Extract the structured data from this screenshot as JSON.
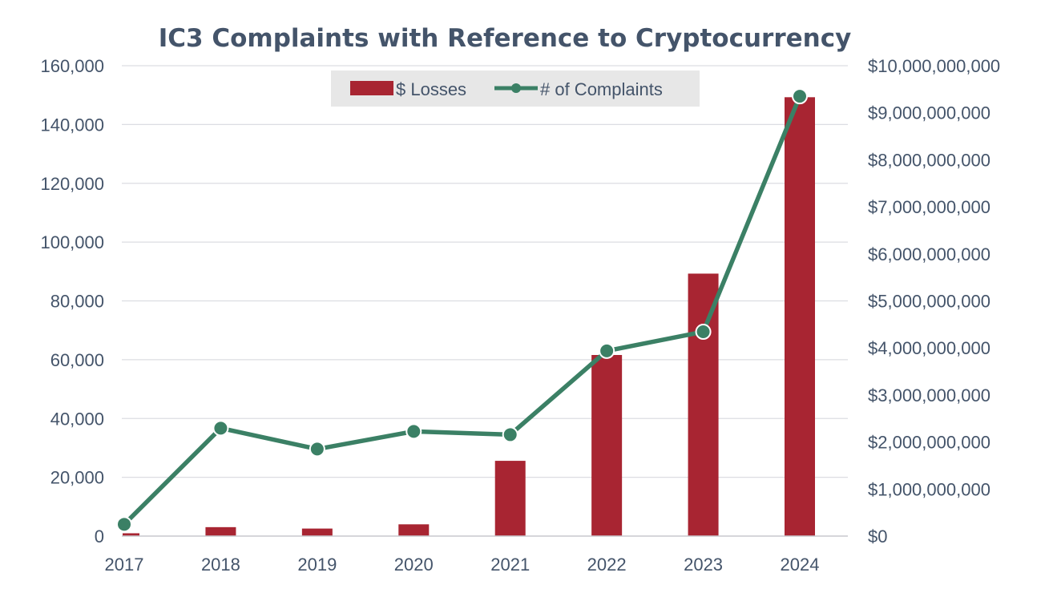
{
  "chart_data": {
    "type": "bar",
    "title": "IC3 Complaints with Reference to Cryptocurrency",
    "categories": [
      "2017",
      "2018",
      "2019",
      "2020",
      "2021",
      "2022",
      "2023",
      "2024"
    ],
    "series": [
      {
        "name": "$ Losses",
        "type": "bar",
        "axis": "right",
        "color": "#a82532",
        "values": [
          60000000,
          190000000,
          160000000,
          250000000,
          1600000000,
          3850000000,
          5580000000,
          9330000000
        ]
      },
      {
        "name": "# of Complaints",
        "type": "line",
        "axis": "left",
        "color": "#3b8065",
        "values": [
          4000,
          36700,
          29600,
          35600,
          34500,
          63000,
          69500,
          149600
        ]
      }
    ],
    "y_left": {
      "min": 0,
      "max": 160000,
      "ticks": [
        0,
        20000,
        40000,
        60000,
        80000,
        100000,
        120000,
        140000,
        160000
      ],
      "tick_labels": [
        "0",
        "20,000",
        "40,000",
        "60,000",
        "80,000",
        "100,000",
        "120,000",
        "140,000",
        "160,000"
      ]
    },
    "y_right": {
      "min": 0,
      "max": 10000000000,
      "ticks": [
        0,
        1000000000,
        2000000000,
        3000000000,
        4000000000,
        5000000000,
        6000000000,
        7000000000,
        8000000000,
        9000000000,
        10000000000
      ],
      "tick_labels": [
        "$0",
        "$1,000,000,000",
        "$2,000,000,000",
        "$3,000,000,000",
        "$4,000,000,000",
        "$5,000,000,000",
        "$6,000,000,000",
        "$7,000,000,000",
        "$8,000,000,000",
        "$9,000,000,000",
        "$10,000,000,000"
      ]
    },
    "grid": true,
    "legend_position": "top-center"
  }
}
